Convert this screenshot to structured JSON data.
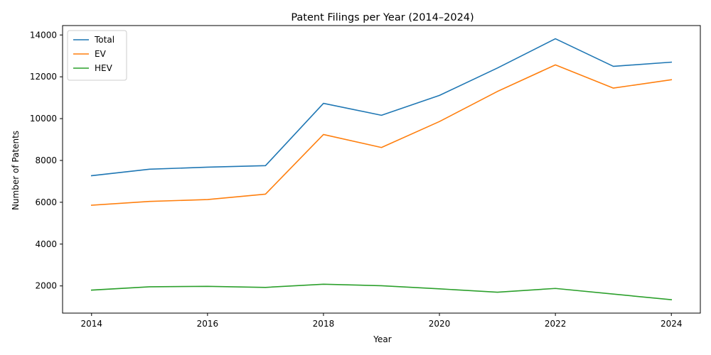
{
  "chart_data": {
    "type": "line",
    "title": "Patent Filings per Year (2014–2024)",
    "xlabel": "Year",
    "ylabel": "Number of Patents",
    "x": [
      2014,
      2015,
      2016,
      2017,
      2018,
      2019,
      2020,
      2021,
      2022,
      2023,
      2024
    ],
    "xlim": [
      2013.5,
      2024.5
    ],
    "ylim": [
      700,
      14450
    ],
    "xticks": [
      2014,
      2016,
      2018,
      2020,
      2022,
      2024
    ],
    "yticks": [
      2000,
      4000,
      6000,
      8000,
      10000,
      12000,
      14000
    ],
    "grid": false,
    "legend_position": "upper-left",
    "series": [
      {
        "name": "Total",
        "color": "#1f77b4",
        "values": [
          7270,
          7580,
          7680,
          7750,
          10730,
          10160,
          11110,
          12420,
          13820,
          12500,
          12700
        ]
      },
      {
        "name": "EV",
        "color": "#ff7f0e",
        "values": [
          5860,
          6040,
          6130,
          6390,
          9240,
          8620,
          9860,
          11300,
          12570,
          11460,
          11860
        ]
      },
      {
        "name": "HEV",
        "color": "#2ca02c",
        "values": [
          1800,
          1960,
          1980,
          1930,
          2080,
          2010,
          1860,
          1700,
          1880,
          1610,
          1340
        ]
      }
    ]
  }
}
